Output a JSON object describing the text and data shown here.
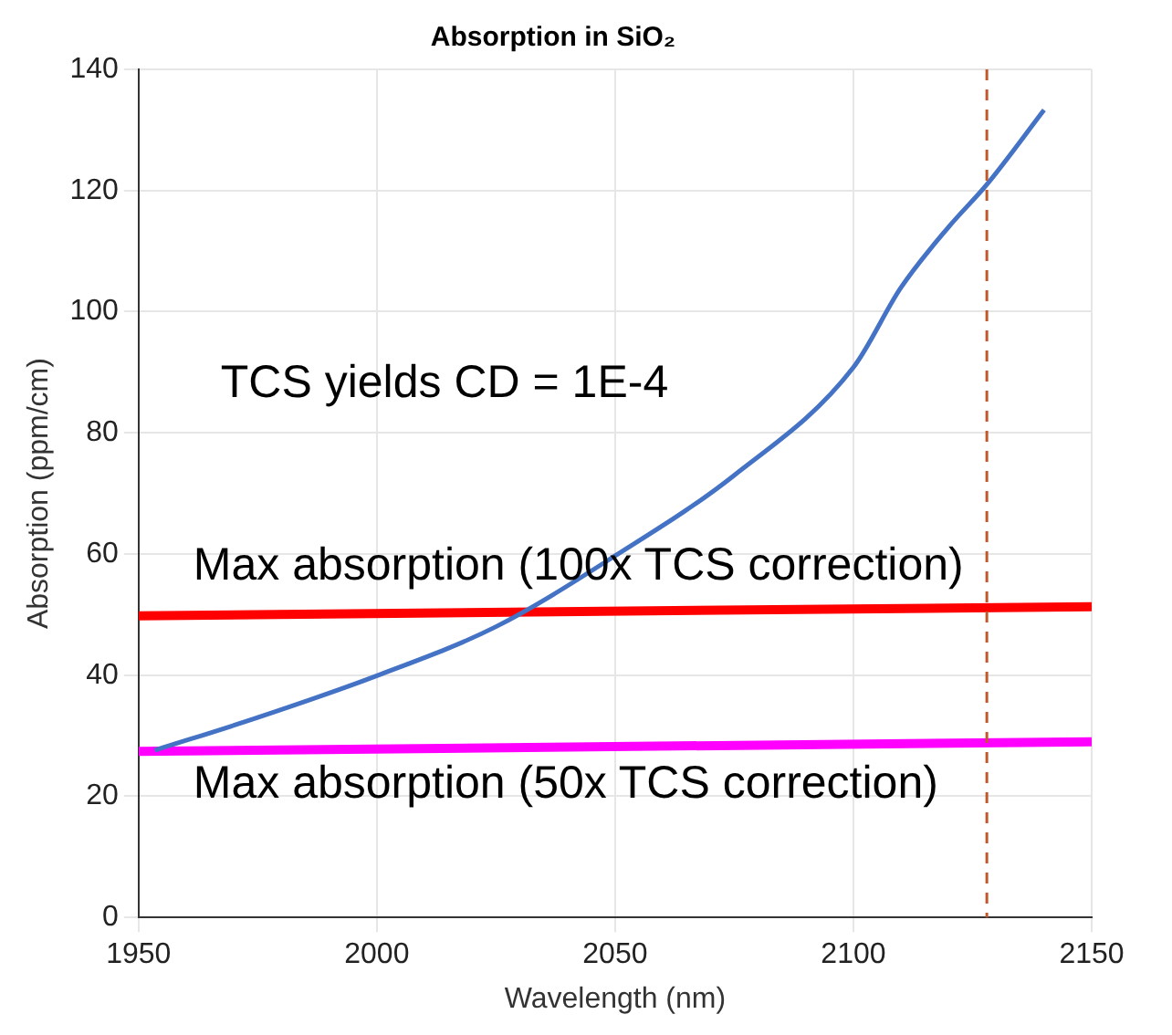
{
  "chart_data": {
    "type": "line",
    "title": "Absorption in SiO₂",
    "xlabel": "Wavelength (nm)",
    "ylabel": "Absorption (ppm/cm)",
    "series": [
      {
        "color": "#4472c4",
        "x": [
          1953.4,
          1975,
          2000,
          2025,
          2050,
          2075,
          2100,
          2110,
          2120,
          2128,
          2140
        ],
        "values": [
          27.6,
          33,
          39.9,
          48,
          59.7,
          73,
          90.8,
          104,
          114,
          121,
          133.3
        ]
      },
      {
        "name": "Max absorption (100x TCS correction)",
        "color": "#ff0000",
        "x": [
          1950,
          2150
        ],
        "values": [
          49.8,
          51.3
        ]
      },
      {
        "name": "Max absorption (50x TCS correction)",
        "color": "#ff00ff",
        "x": [
          1950,
          2150
        ],
        "values": [
          27.4,
          29.0
        ]
      }
    ],
    "annotations": [
      "TCS yields CD = 1E-4"
    ],
    "ref_lines": [
      {
        "axis": "x",
        "value": 2128,
        "color": "#c0582b",
        "line_style": "dashed"
      }
    ],
    "xlim": [
      1950,
      2150
    ],
    "xticks": [
      1950,
      2000,
      2050,
      2100,
      2150
    ],
    "ylim": [
      0,
      140
    ],
    "yticks": [
      0,
      20,
      40,
      60,
      80,
      100,
      120,
      140
    ],
    "grid": true,
    "legend": false,
    "marker": "none",
    "line_style": "solid"
  }
}
